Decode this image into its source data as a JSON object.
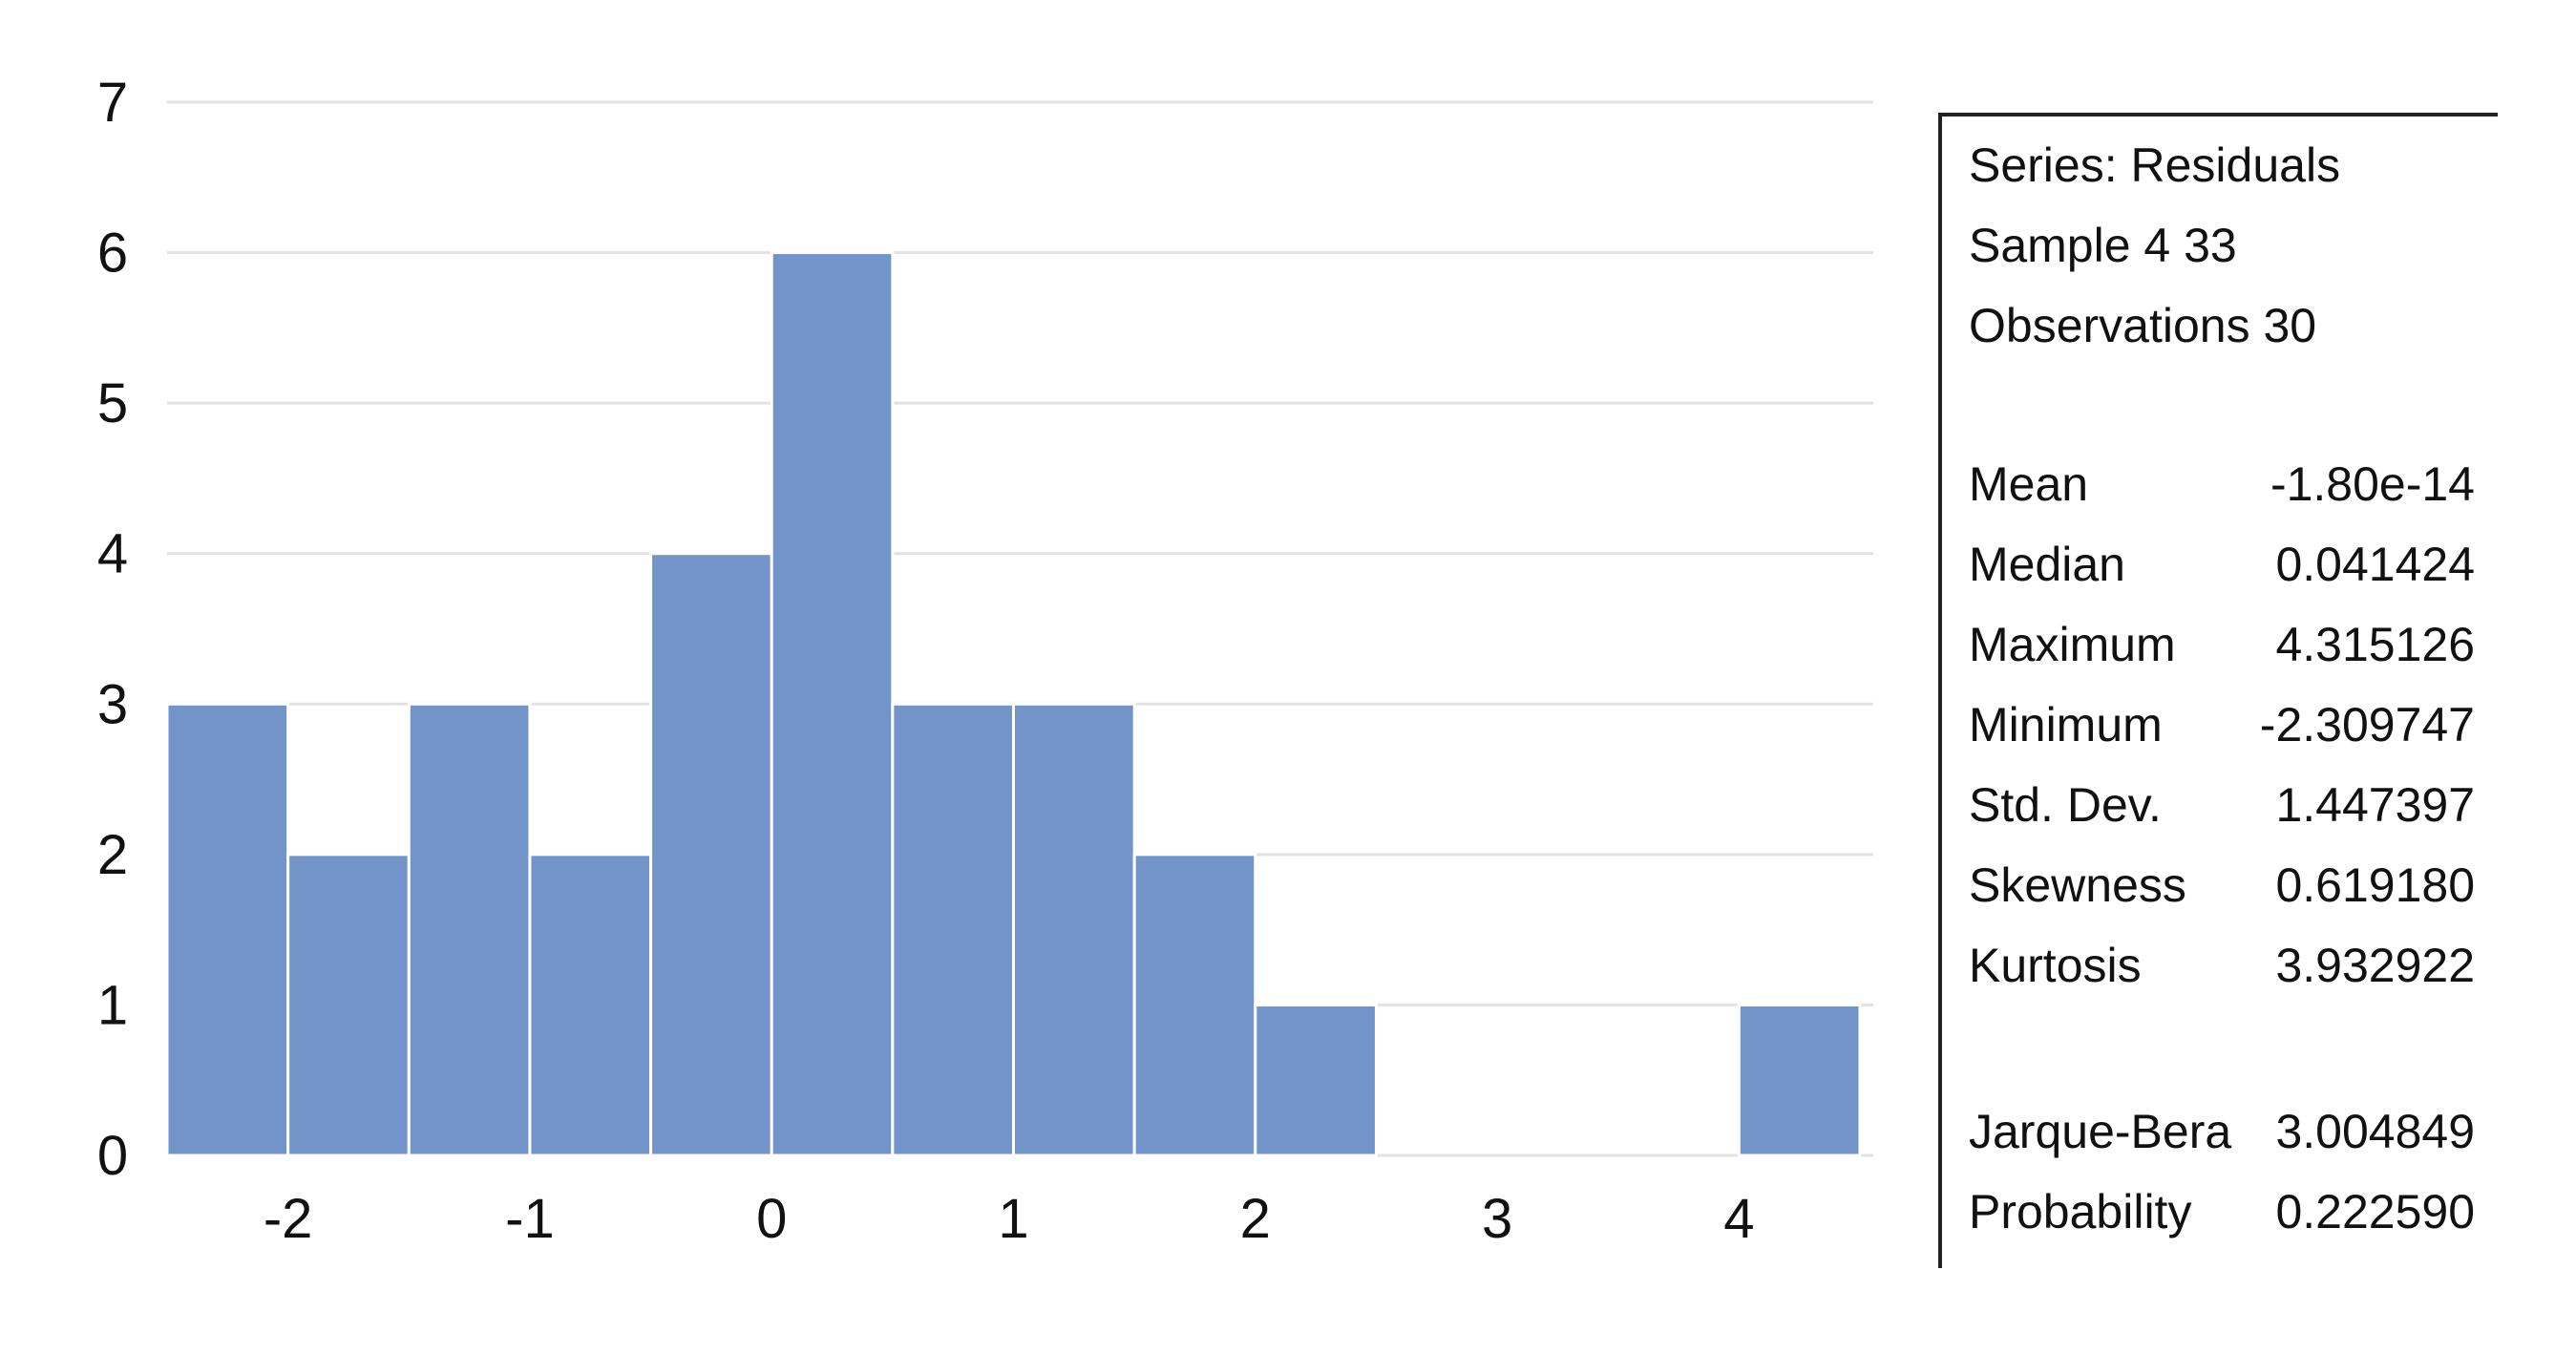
{
  "chart_data": {
    "type": "bar",
    "title": "",
    "xlabel": "",
    "ylabel": "",
    "bin_edges": [
      -2.5,
      -2.0,
      -1.5,
      -1.0,
      -0.5,
      0.0,
      0.5,
      1.0,
      1.5,
      2.0,
      2.5,
      3.0,
      3.5,
      4.0,
      4.5
    ],
    "values": [
      3,
      2,
      3,
      2,
      4,
      6,
      3,
      3,
      2,
      1,
      0,
      0,
      0,
      1
    ],
    "xlim": [
      -2.5,
      4.5
    ],
    "ylim": [
      0,
      7
    ],
    "yticks": [
      "0",
      "1",
      "2",
      "3",
      "4",
      "5",
      "6",
      "7"
    ],
    "xticks": [
      {
        "value": -2,
        "label": "-2"
      },
      {
        "value": -1,
        "label": "-1"
      },
      {
        "value": 0,
        "label": "0"
      },
      {
        "value": 1,
        "label": "1"
      },
      {
        "value": 2,
        "label": "2"
      },
      {
        "value": 3,
        "label": "3"
      },
      {
        "value": 4,
        "label": "4"
      }
    ],
    "grid": true,
    "bar_color": "#7294c8"
  },
  "stats": {
    "series": "Series: Residuals",
    "sample": "Sample 4 33",
    "observations": "Observations 30",
    "rows": [
      {
        "label": "Mean",
        "value": "-1.80e-14"
      },
      {
        "label": "Median",
        "value": "0.041424"
      },
      {
        "label": "Maximum",
        "value": "4.315126"
      },
      {
        "label": "Minimum",
        "value": "-2.309747"
      },
      {
        "label": "Std. Dev.",
        "value": "1.447397"
      },
      {
        "label": "Skewness",
        "value": "0.619180"
      },
      {
        "label": "Kurtosis",
        "value": "3.932922"
      }
    ],
    "tests": [
      {
        "label": "Jarque-Bera",
        "value": "3.004849"
      },
      {
        "label": "Probability",
        "value": "0.222590"
      }
    ]
  }
}
